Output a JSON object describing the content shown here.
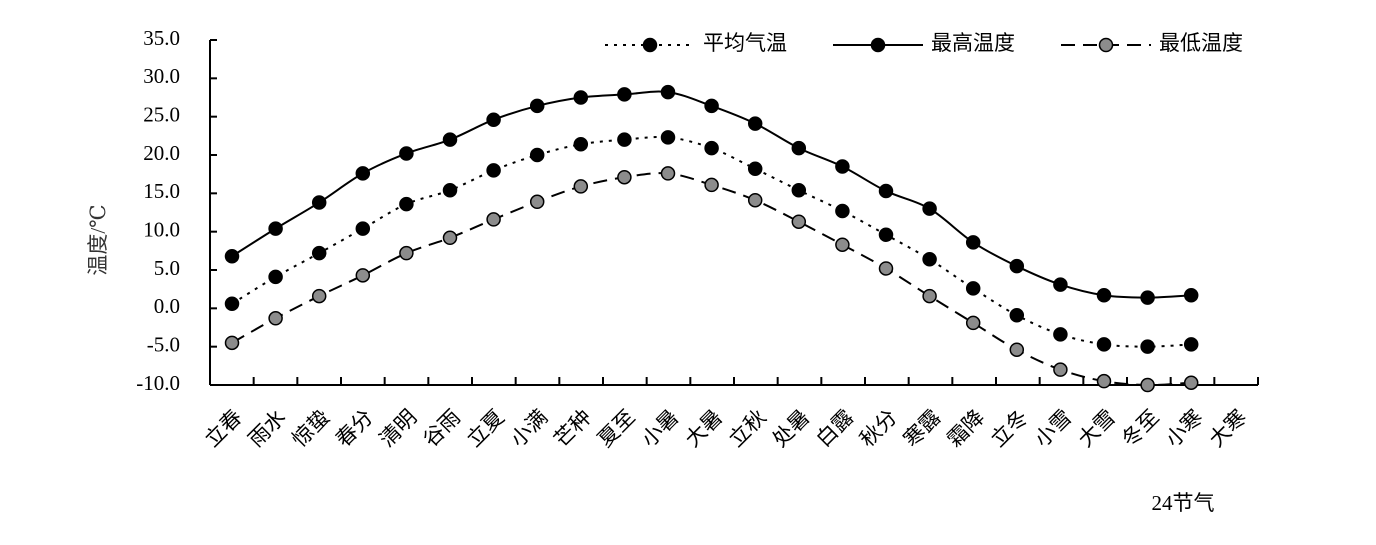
{
  "chart_data": {
    "type": "line",
    "y_label": "温度/℃",
    "x_label": "24节气",
    "categories": [
      "立春",
      "雨水",
      "惊蛰",
      "春分",
      "清明",
      "谷雨",
      "立夏",
      "小满",
      "芒种",
      "夏至",
      "小暑",
      "大暑",
      "立秋",
      "处暑",
      "白露",
      "秋分",
      "寒露",
      "霜降",
      "立冬",
      "小雪",
      "大雪",
      "冬至",
      "小寒",
      "大寒"
    ],
    "series": [
      {
        "name": "平均气温",
        "color": "#000000",
        "marker_color": "#000000",
        "style": "dotted",
        "values": [
          0.6,
          4.1,
          7.2,
          10.4,
          13.6,
          15.4,
          18.0,
          20.0,
          21.4,
          22.0,
          22.3,
          20.9,
          18.2,
          15.4,
          12.7,
          9.6,
          6.4,
          2.6,
          -0.9,
          -3.4,
          -4.7,
          -5.0,
          -4.7,
          null
        ]
      },
      {
        "name": "最高温度",
        "color": "#000000",
        "marker_color": "#000000",
        "style": "solid",
        "values": [
          6.8,
          10.4,
          13.8,
          17.6,
          20.2,
          22.0,
          24.6,
          26.4,
          27.5,
          27.9,
          28.2,
          26.4,
          24.1,
          20.9,
          18.5,
          15.3,
          13.0,
          8.6,
          5.5,
          3.1,
          1.7,
          1.4,
          1.7,
          null
        ]
      },
      {
        "name": "最低温度",
        "color": "#000000",
        "marker_color": "#8c8c8c",
        "style": "dashed",
        "values": [
          -4.5,
          -1.3,
          1.6,
          4.3,
          7.2,
          9.2,
          11.6,
          13.9,
          15.9,
          17.1,
          17.6,
          16.1,
          14.1,
          11.3,
          8.3,
          5.2,
          1.6,
          -1.9,
          -5.4,
          -8.0,
          -9.5,
          -10.0,
          -9.7,
          null
        ]
      }
    ],
    "ylim": [
      -10,
      35
    ],
    "yticks": [
      {
        "value": -10,
        "label": "-10.0"
      },
      {
        "value": -5,
        "label": "-5.0"
      },
      {
        "value": 0,
        "label": "0.0"
      },
      {
        "value": 5,
        "label": "5.0"
      },
      {
        "value": 10,
        "label": "10.0"
      },
      {
        "value": 15,
        "label": "15.0"
      },
      {
        "value": 20,
        "label": "20.0"
      },
      {
        "value": 25,
        "label": "25.0"
      },
      {
        "value": 30,
        "label": "30.0"
      },
      {
        "value": 35,
        "label": "35.0"
      }
    ],
    "grid": false,
    "legend": "top-right"
  }
}
